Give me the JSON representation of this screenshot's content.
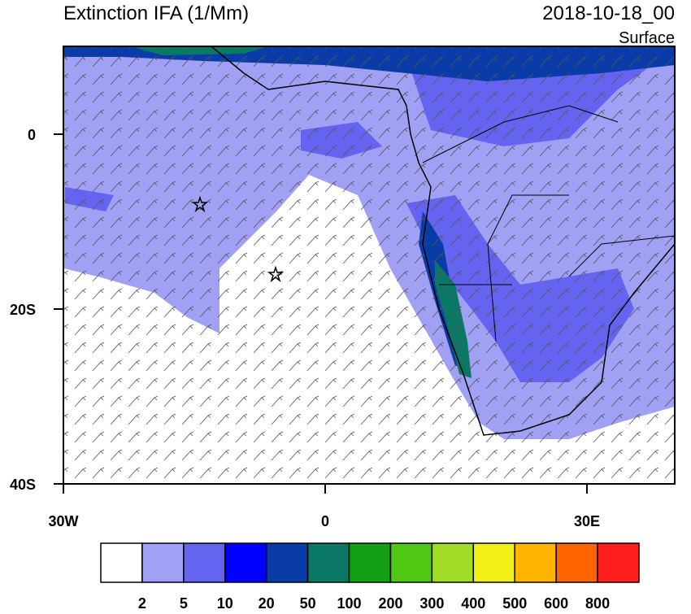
{
  "header": {
    "title": "Extinction IFA (1/Mm)",
    "date": "2018-10-18_00",
    "level": "Surface"
  },
  "lat_labels": [
    "0",
    "20S",
    "40S"
  ],
  "lon_labels": [
    "30W",
    "0",
    "30E"
  ],
  "colorbar": {
    "colors": [
      "#ffffff",
      "#a0a0f5",
      "#6464f0",
      "#0000ff",
      "#0a3ca8",
      "#0a7864",
      "#14a014",
      "#50c814",
      "#a0dc28",
      "#f0f014",
      "#ffb400",
      "#ff6400",
      "#ff1e1e"
    ],
    "labels": [
      "2",
      "5",
      "10",
      "20",
      "50",
      "100",
      "200",
      "300",
      "400",
      "500",
      "600",
      "800"
    ]
  }
}
